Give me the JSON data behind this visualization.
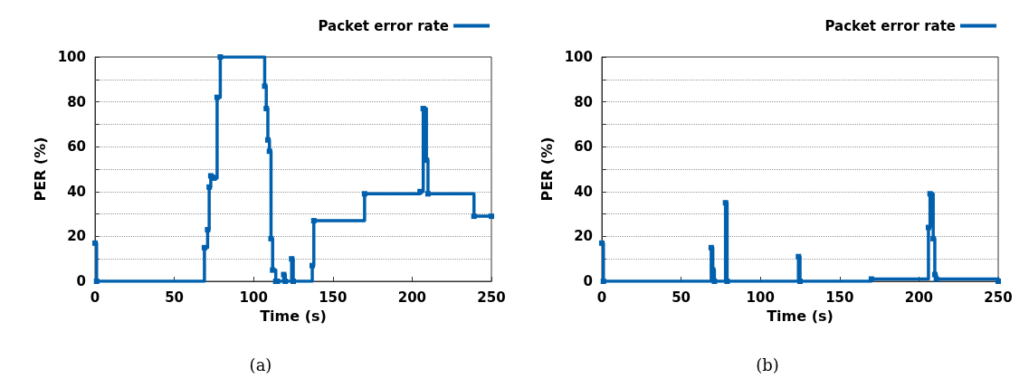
{
  "chart_data": [
    {
      "type": "step",
      "title": "(a)",
      "xlabel": "Time (s)",
      "ylabel": "PER (%)",
      "legend": "top right",
      "grid": "y",
      "marker": "square",
      "line_style": "solid",
      "xlim": [
        0,
        250
      ],
      "xticks": [
        0,
        50,
        100,
        150,
        200,
        250
      ],
      "ylim": [
        0,
        100
      ],
      "yticks": [
        0,
        {
          "value": 10,
          "label": null
        },
        20,
        {
          "value": 30,
          "label": null
        },
        40,
        {
          "value": 50,
          "label": null
        },
        60,
        {
          "value": 70,
          "label": null
        },
        80,
        {
          "value": 90,
          "label": null
        },
        100
      ],
      "series": [
        {
          "name": "Packet error rate",
          "color": "#0060ad",
          "x": [
            0,
            1,
            69,
            71,
            72,
            73,
            75,
            77,
            79,
            107,
            108,
            109,
            110,
            111,
            112,
            114,
            115,
            119,
            120,
            124,
            125,
            137,
            138,
            170,
            205,
            207,
            209,
            210,
            239,
            250
          ],
          "values": [
            17,
            0,
            15,
            23,
            42,
            47,
            46,
            82,
            100,
            87,
            77,
            63,
            58,
            19,
            5,
            0,
            0,
            3,
            0,
            10,
            0,
            7,
            27,
            39,
            40,
            77,
            54,
            39,
            29,
            29
          ]
        }
      ]
    },
    {
      "type": "step",
      "title": "(b)",
      "xlabel": "Time (s)",
      "ylabel": "PER (%)",
      "legend": "top right",
      "grid": "y",
      "marker": "square",
      "line_style": "solid",
      "xlim": [
        0,
        250
      ],
      "xticks": [
        0,
        50,
        100,
        150,
        200,
        250
      ],
      "ylim": [
        0,
        100
      ],
      "yticks": [
        0,
        {
          "value": 10,
          "label": null
        },
        20,
        {
          "value": 30,
          "label": null
        },
        40,
        {
          "value": 50,
          "label": null
        },
        60,
        {
          "value": 70,
          "label": null
        },
        80,
        {
          "value": 90,
          "label": null
        },
        100
      ],
      "series": [
        {
          "name": "Packet error rate",
          "color": "#0060ad",
          "x": [
            0,
            1,
            69,
            70,
            71,
            78,
            79,
            124,
            125,
            170,
            206,
            207,
            209,
            210,
            211,
            250
          ],
          "values": [
            17,
            0,
            15,
            5,
            0,
            35,
            0,
            11,
            0,
            1,
            24,
            39,
            19,
            3,
            1,
            0
          ]
        }
      ]
    }
  ]
}
